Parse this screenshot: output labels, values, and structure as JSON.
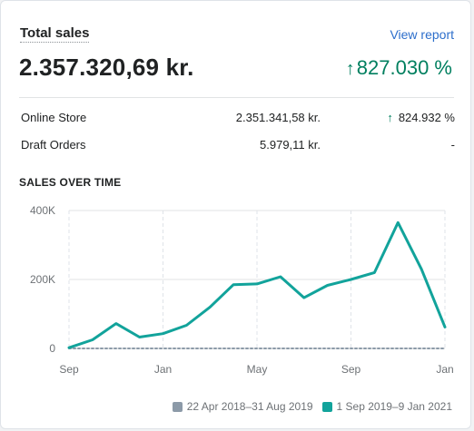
{
  "card": {
    "title": "Total sales",
    "view_report": "View report",
    "total": "2.357.320,69 kr.",
    "change_arrow": "↑",
    "change": "827.030 %"
  },
  "breakdown": [
    {
      "label": "Online Store",
      "amount": "2.351.341,58 kr.",
      "pct_arrow": "↑",
      "pct": "824.932 %"
    },
    {
      "label": "Draft Orders",
      "amount": "5.979,11 kr.",
      "pct_arrow": "",
      "pct": "-"
    }
  ],
  "chart_heading": "SALES OVER TIME",
  "colors": {
    "current": "#12a39b",
    "previous": "#8c9aa8",
    "accent_green": "#007f5f",
    "link": "#2c6ecb"
  },
  "chart_data": {
    "type": "line",
    "title": "SALES OVER TIME",
    "xlabel": "",
    "ylabel": "",
    "ylim": [
      0,
      400000
    ],
    "y_ticks": [
      0,
      200000,
      400000
    ],
    "y_tick_labels": [
      "0",
      "200K",
      "400K"
    ],
    "x_tick_labels": [
      "Sep",
      "Jan",
      "May",
      "Sep",
      "Jan"
    ],
    "x_tick_index": [
      0,
      4,
      8,
      12,
      16
    ],
    "grid": true,
    "legend_position": "bottom-right",
    "series": [
      {
        "name": "22 Apr 2018–31 Aug 2019",
        "color": "#8c9aa8",
        "style": "dotted",
        "values": [
          0,
          0,
          0,
          0,
          0,
          0,
          0,
          0,
          0,
          0,
          0,
          0,
          0,
          0,
          0,
          0,
          0
        ]
      },
      {
        "name": "1 Sep 2019–9 Jan 2021",
        "color": "#12a39b",
        "style": "solid",
        "values": [
          2000,
          25000,
          72000,
          33000,
          43000,
          67000,
          120000,
          185000,
          187000,
          208000,
          147000,
          183000,
          200000,
          220000,
          365000,
          230000,
          62000
        ]
      }
    ]
  }
}
